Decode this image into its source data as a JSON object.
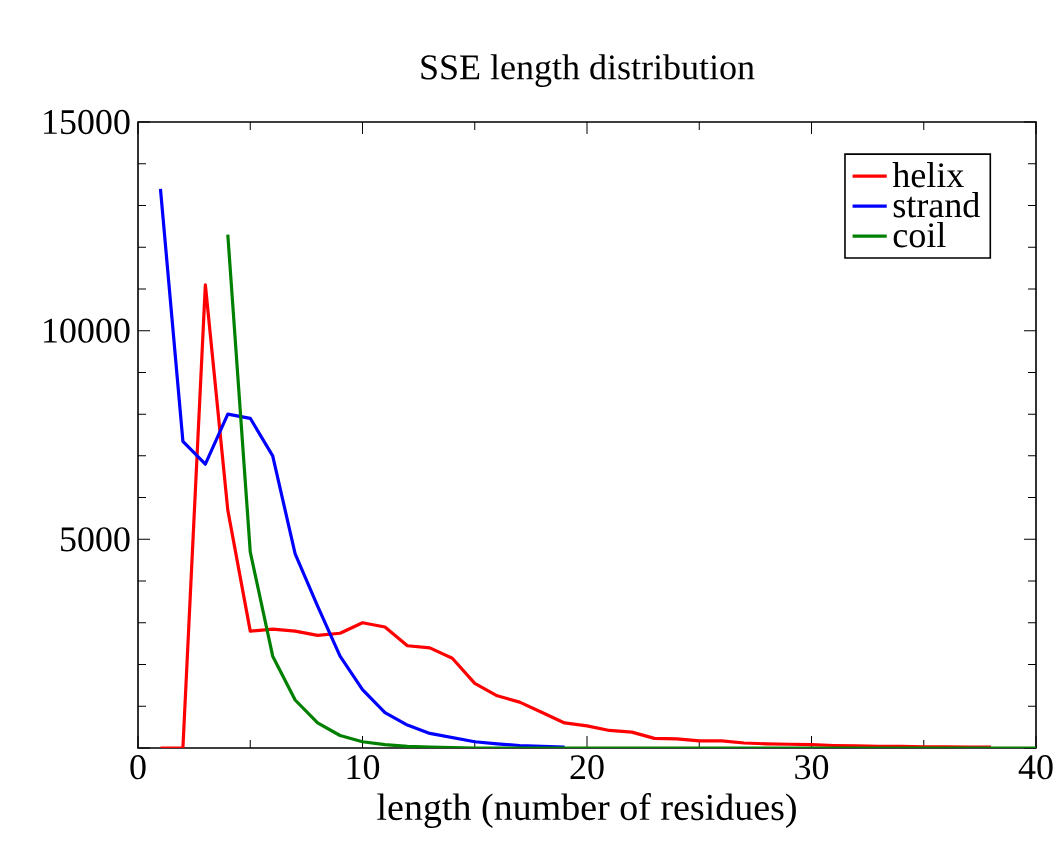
{
  "chart_data": {
    "type": "line",
    "title": "SSE length distribution",
    "xlabel": "length (number of residues)",
    "x": [
      1,
      2,
      3,
      4,
      5,
      6,
      7,
      8,
      9,
      10,
      11,
      12,
      13,
      14,
      15,
      16,
      17,
      18,
      19,
      20,
      21,
      22,
      23,
      24,
      25,
      26,
      27,
      28,
      29,
      30,
      31,
      32,
      33,
      34,
      35,
      36,
      37,
      38,
      39,
      40
    ],
    "series": [
      {
        "name": "helix",
        "color": "#ff0000",
        "values": [
          0,
          0,
          11100,
          5700,
          2800,
          2850,
          2800,
          2700,
          2750,
          3000,
          2900,
          2450,
          2400,
          2150,
          1550,
          1250,
          1100,
          850,
          600,
          530,
          420,
          380,
          230,
          220,
          170,
          170,
          120,
          100,
          90,
          80,
          60,
          50,
          40,
          40,
          30,
          30,
          20,
          20,
          null,
          null
        ]
      },
      {
        "name": "strand",
        "color": "#0000ff",
        "values": [
          13400,
          7350,
          6800,
          8000,
          7900,
          7000,
          4650,
          3400,
          2200,
          1400,
          850,
          550,
          350,
          250,
          150,
          100,
          60,
          40,
          20,
          null,
          null,
          null,
          null,
          null,
          null,
          null,
          null,
          null,
          null,
          null,
          null,
          null,
          null,
          null,
          null,
          null,
          null,
          null,
          null,
          null
        ]
      },
      {
        "name": "coil",
        "color": "#008000",
        "values": [
          null,
          null,
          null,
          12300,
          4700,
          2200,
          1150,
          600,
          300,
          150,
          80,
          40,
          20,
          10,
          0,
          0,
          0,
          0,
          0,
          0,
          0,
          0,
          0,
          0,
          0,
          0,
          0,
          0,
          0,
          0,
          0,
          0,
          0,
          0,
          0,
          0,
          0,
          0,
          0,
          0
        ]
      }
    ],
    "xlim": [
      0,
      40
    ],
    "xticks": [
      0,
      10,
      20,
      30,
      40
    ],
    "ylim": [
      0,
      15000
    ],
    "yticks": [
      {
        "value": 0,
        "label": null
      },
      5000,
      10000,
      15000
    ],
    "grid": false,
    "legend": "top right",
    "marker": "none",
    "line_style": "solid"
  }
}
